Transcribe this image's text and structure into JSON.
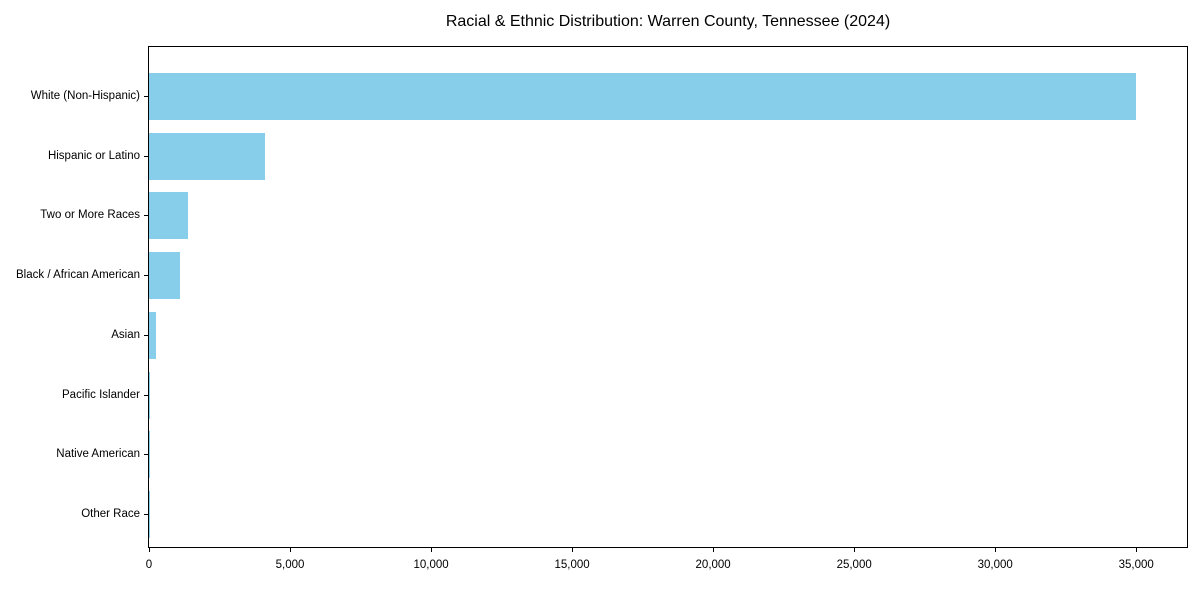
{
  "title": "Racial & Ethnic Distribution: Warren County, Tennessee (2024)",
  "chart_data": {
    "type": "bar",
    "orientation": "horizontal",
    "title": "Racial & Ethnic Distribution: Warren County, Tennessee (2024)",
    "xlabel": "",
    "ylabel": "",
    "categories": [
      "White (Non-Hispanic)",
      "Hispanic or Latino",
      "Two or More Races",
      "Black / African American",
      "Asian",
      "Pacific Islander",
      "Native American",
      "Other Race"
    ],
    "values": [
      35000,
      4100,
      1390,
      1100,
      250,
      40,
      15,
      10
    ],
    "bar_color": "#87CEEB",
    "xlim": [
      0,
      36800
    ],
    "x_ticks": [
      0,
      5000,
      10000,
      15000,
      20000,
      25000,
      30000,
      35000
    ],
    "x_tick_labels": [
      "0",
      "5,000",
      "10,000",
      "15,000",
      "20,000",
      "25,000",
      "30,000",
      "35,000"
    ],
    "grid": false,
    "legend": null,
    "axis_color": "#000000",
    "background_color": "#ffffff"
  }
}
